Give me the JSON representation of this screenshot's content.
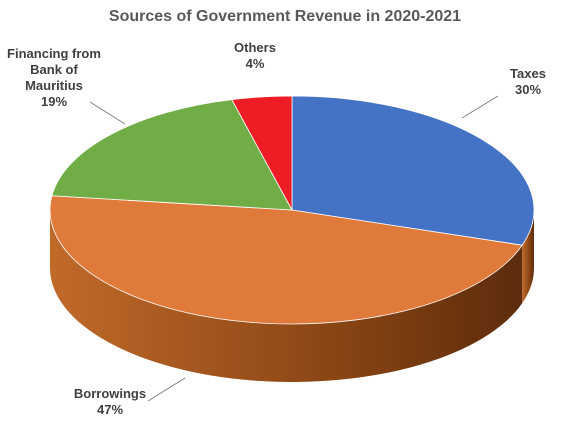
{
  "chart_data": {
    "type": "pie",
    "title": "Sources of Government Revenue in 2020-2021",
    "slices": [
      {
        "name": "Taxes",
        "value": 30,
        "label": "30%",
        "color": "#4472c4"
      },
      {
        "name": "Borrowings",
        "value": 47,
        "label": "47%",
        "color": "#e07a3a"
      },
      {
        "name": "Financing from Bank of Mauritius",
        "value": 19,
        "label": "19%",
        "color": "#70ad47"
      },
      {
        "name": "Others",
        "value": 4,
        "label": "4%",
        "color": "#ee1c25"
      }
    ],
    "label_lines": {
      "Taxes": [
        "Taxes"
      ],
      "Borrowings": [
        "Borrowings"
      ],
      "Financing from Bank of Mauritius": [
        "Financing from",
        "Bank of",
        "Mauritius"
      ],
      "Others": [
        "Others"
      ]
    },
    "start_angle_deg": -90,
    "direction": "clockwise",
    "style": "3d"
  }
}
